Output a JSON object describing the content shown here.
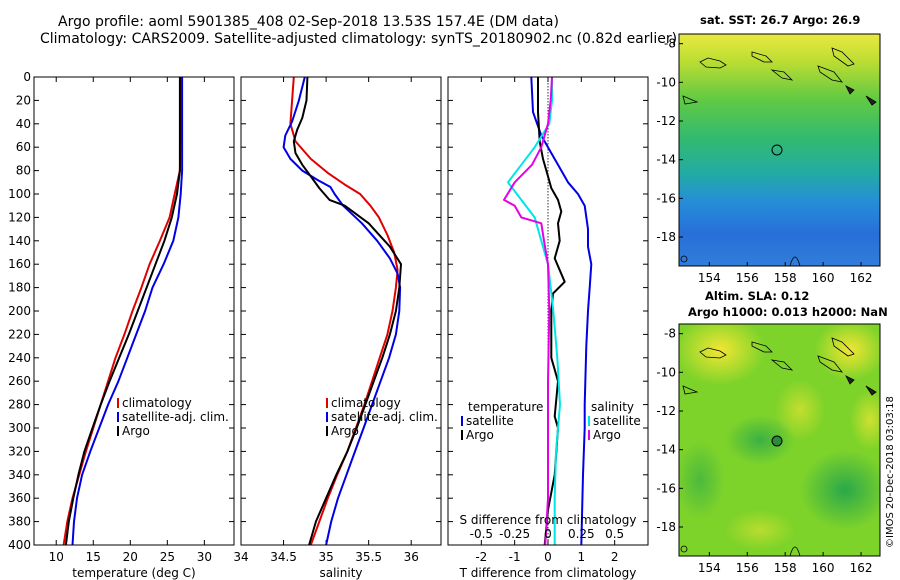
{
  "figure": {
    "title_line1": "Argo profile: aoml 5901385_408 02-Sep-2018 13.53S 157.4E (DM data)",
    "title_line2": "Climatology: CARS2009. Satellite-adjusted climatology: synTS_20180902.nc (0.82d earlier)",
    "credit": "©IMOS 20-Dec-2018 03:03:18",
    "colors": {
      "climatology": "#e00000",
      "satellite": "#0000e6",
      "argo": "#000000",
      "cyan": "#00e5e5",
      "magenta": "#e600e6"
    }
  },
  "chart_data": [
    {
      "id": "temperature",
      "type": "line",
      "xlabel": "temperature (deg C)",
      "ylabel": "",
      "xlim": [
        7,
        34
      ],
      "ylim": [
        400,
        0
      ],
      "xticks": [
        10,
        15,
        20,
        25,
        30
      ],
      "yticks": [
        0,
        20,
        40,
        60,
        80,
        100,
        120,
        140,
        160,
        180,
        200,
        220,
        240,
        260,
        280,
        300,
        320,
        340,
        360,
        380,
        400
      ],
      "legend": {
        "position": "middle-right",
        "entries": [
          "climatology",
          "satellite-adj. clim.",
          "Argo"
        ]
      },
      "series": [
        {
          "name": "climatology",
          "color": "#e00000",
          "points": [
            [
              26.8,
              0
            ],
            [
              26.8,
              40
            ],
            [
              26.7,
              80
            ],
            [
              26.0,
              100
            ],
            [
              25.3,
              120
            ],
            [
              24.0,
              140
            ],
            [
              22.6,
              160
            ],
            [
              21.5,
              180
            ],
            [
              20.3,
              200
            ],
            [
              19.2,
              220
            ],
            [
              18.0,
              240
            ],
            [
              17.0,
              260
            ],
            [
              16.0,
              280
            ],
            [
              15.0,
              300
            ],
            [
              14.0,
              320
            ],
            [
              13.1,
              340
            ],
            [
              12.2,
              360
            ],
            [
              11.5,
              380
            ],
            [
              11.0,
              400
            ]
          ]
        },
        {
          "name": "satellite-adj. clim.",
          "color": "#0000e6",
          "points": [
            [
              27.0,
              0
            ],
            [
              27.0,
              40
            ],
            [
              27.0,
              80
            ],
            [
              26.8,
              100
            ],
            [
              26.5,
              120
            ],
            [
              25.8,
              140
            ],
            [
              24.5,
              160
            ],
            [
              23.0,
              180
            ],
            [
              22.0,
              200
            ],
            [
              20.8,
              220
            ],
            [
              19.6,
              240
            ],
            [
              18.4,
              260
            ],
            [
              17.0,
              280
            ],
            [
              15.8,
              300
            ],
            [
              14.6,
              320
            ],
            [
              13.5,
              340
            ],
            [
              12.8,
              360
            ],
            [
              12.4,
              380
            ],
            [
              12.2,
              400
            ]
          ]
        },
        {
          "name": "Argo",
          "color": "#000000",
          "points": [
            [
              26.7,
              0
            ],
            [
              26.7,
              40
            ],
            [
              26.7,
              80
            ],
            [
              26.3,
              100
            ],
            [
              25.6,
              120
            ],
            [
              24.6,
              140
            ],
            [
              23.4,
              160
            ],
            [
              22.2,
              180
            ],
            [
              21.0,
              200
            ],
            [
              19.8,
              220
            ],
            [
              18.5,
              240
            ],
            [
              17.2,
              260
            ],
            [
              16.0,
              280
            ],
            [
              14.9,
              300
            ],
            [
              13.8,
              320
            ],
            [
              13.0,
              340
            ],
            [
              12.3,
              360
            ],
            [
              11.7,
              380
            ],
            [
              11.3,
              400
            ]
          ]
        }
      ]
    },
    {
      "id": "salinity",
      "type": "line",
      "xlabel": "salinity",
      "ylabel": "",
      "xlim": [
        34,
        36.35
      ],
      "ylim": [
        400,
        0
      ],
      "xticks": [
        34,
        34.5,
        35,
        35.5,
        36
      ],
      "yticks": [
        0,
        20,
        40,
        60,
        80,
        100,
        120,
        140,
        160,
        180,
        200,
        220,
        240,
        260,
        280,
        300,
        320,
        340,
        360,
        380,
        400
      ],
      "legend": {
        "position": "middle-right",
        "entries": [
          "climatology",
          "satellite-adj. clim.",
          "Argo"
        ]
      },
      "series": [
        {
          "name": "climatology",
          "color": "#e00000",
          "points": [
            [
              34.62,
              0
            ],
            [
              34.6,
              20
            ],
            [
              34.58,
              40
            ],
            [
              34.64,
              55
            ],
            [
              34.82,
              70
            ],
            [
              35.02,
              82
            ],
            [
              35.22,
              92
            ],
            [
              35.4,
              100
            ],
            [
              35.52,
              110
            ],
            [
              35.62,
              120
            ],
            [
              35.72,
              135
            ],
            [
              35.8,
              150
            ],
            [
              35.84,
              165
            ],
            [
              35.82,
              180
            ],
            [
              35.78,
              200
            ],
            [
              35.72,
              220
            ],
            [
              35.63,
              240
            ],
            [
              35.54,
              260
            ],
            [
              35.45,
              280
            ],
            [
              35.35,
              300
            ],
            [
              35.25,
              320
            ],
            [
              35.13,
              340
            ],
            [
              35.02,
              360
            ],
            [
              34.92,
              380
            ],
            [
              34.82,
              400
            ]
          ]
        },
        {
          "name": "satellite-adj. clim.",
          "color": "#0000e6",
          "points": [
            [
              34.75,
              0
            ],
            [
              34.68,
              20
            ],
            [
              34.6,
              38
            ],
            [
              34.52,
              50
            ],
            [
              34.5,
              60
            ],
            [
              34.58,
              70
            ],
            [
              34.72,
              80
            ],
            [
              34.9,
              88
            ],
            [
              35.05,
              94
            ],
            [
              35.1,
              100
            ],
            [
              35.2,
              110
            ],
            [
              35.42,
              125
            ],
            [
              35.6,
              140
            ],
            [
              35.75,
              155
            ],
            [
              35.84,
              168
            ],
            [
              35.87,
              180
            ],
            [
              35.86,
              200
            ],
            [
              35.82,
              220
            ],
            [
              35.74,
              240
            ],
            [
              35.64,
              260
            ],
            [
              35.54,
              280
            ],
            [
              35.44,
              300
            ],
            [
              35.34,
              320
            ],
            [
              35.24,
              340
            ],
            [
              35.14,
              360
            ],
            [
              35.06,
              380
            ],
            [
              35.0,
              400
            ]
          ]
        },
        {
          "name": "Argo",
          "color": "#000000",
          "points": [
            [
              34.78,
              0
            ],
            [
              34.77,
              20
            ],
            [
              34.72,
              35
            ],
            [
              34.66,
              45
            ],
            [
              34.62,
              55
            ],
            [
              34.64,
              65
            ],
            [
              34.72,
              75
            ],
            [
              34.82,
              85
            ],
            [
              34.92,
              95
            ],
            [
              35.04,
              105
            ],
            [
              35.22,
              110
            ],
            [
              35.5,
              125
            ],
            [
              35.75,
              145
            ],
            [
              35.88,
              160
            ],
            [
              35.86,
              180
            ],
            [
              35.82,
              200
            ],
            [
              35.75,
              220
            ],
            [
              35.66,
              240
            ],
            [
              35.56,
              260
            ],
            [
              35.46,
              280
            ],
            [
              35.36,
              300
            ],
            [
              35.25,
              320
            ],
            [
              35.12,
              340
            ],
            [
              35.0,
              360
            ],
            [
              34.88,
              380
            ],
            [
              34.8,
              400
            ]
          ]
        }
      ]
    },
    {
      "id": "differences",
      "type": "line",
      "xlabel": "T difference from climatology",
      "x2label": "S difference from climatology",
      "ylabel": "",
      "xlim": [
        -3,
        3
      ],
      "ylim": [
        400,
        0
      ],
      "xticks": [
        -2,
        -1,
        0,
        1,
        2
      ],
      "x2lim": [
        -0.75,
        0.75
      ],
      "x2ticks": [
        -0.5,
        -0.25,
        0,
        0.25,
        0.5
      ],
      "x2ticklabels": [
        "-0.5",
        "-0.25",
        "0",
        "0.25",
        "0.5"
      ],
      "yticks": [
        0,
        20,
        40,
        60,
        80,
        100,
        120,
        140,
        160,
        180,
        200,
        220,
        240,
        260,
        280,
        300,
        320,
        340,
        360,
        380,
        400
      ],
      "legend": {
        "position": "middle",
        "entries": [
          "temperature",
          "satellite",
          "Argo",
          "salinity",
          "satellite",
          "Argo"
        ]
      },
      "series": [
        {
          "name": "T satellite",
          "axis": "T",
          "color": "#0000e6",
          "points": [
            [
              -0.5,
              0
            ],
            [
              -0.45,
              30
            ],
            [
              -0.2,
              50
            ],
            [
              0.1,
              65
            ],
            [
              0.3,
              75
            ],
            [
              0.6,
              90
            ],
            [
              0.9,
              100
            ],
            [
              1.1,
              110
            ],
            [
              1.2,
              130
            ],
            [
              1.2,
              145
            ],
            [
              1.3,
              160
            ],
            [
              1.25,
              180
            ],
            [
              1.2,
              200
            ],
            [
              1.15,
              230
            ],
            [
              1.1,
              280
            ],
            [
              1.1,
              300
            ],
            [
              1.05,
              340
            ],
            [
              1.0,
              400
            ]
          ]
        },
        {
          "name": "T Argo",
          "axis": "T",
          "color": "#000000",
          "points": [
            [
              -0.3,
              0
            ],
            [
              -0.3,
              30
            ],
            [
              -0.25,
              55
            ],
            [
              -0.15,
              70
            ],
            [
              0.0,
              85
            ],
            [
              0.1,
              95
            ],
            [
              0.3,
              105
            ],
            [
              0.4,
              115
            ],
            [
              0.3,
              125
            ],
            [
              0.35,
              140
            ],
            [
              0.2,
              155
            ],
            [
              0.5,
              175
            ],
            [
              0.15,
              185
            ],
            [
              0.1,
              200
            ],
            [
              0.1,
              240
            ],
            [
              0.3,
              260
            ],
            [
              0.2,
              290
            ],
            [
              0.3,
              300
            ],
            [
              0.2,
              340
            ],
            [
              0.0,
              370
            ],
            [
              -0.1,
              400
            ]
          ]
        },
        {
          "name": "S satellite",
          "axis": "S",
          "color": "#00e5e5",
          "points": [
            [
              0.03,
              0
            ],
            [
              0.03,
              20
            ],
            [
              0.01,
              40
            ],
            [
              -0.1,
              60
            ],
            [
              -0.2,
              75
            ],
            [
              -0.3,
              90
            ],
            [
              -0.2,
              105
            ],
            [
              -0.1,
              120
            ],
            [
              -0.05,
              140
            ],
            [
              0.0,
              160
            ],
            [
              0.02,
              180
            ],
            [
              0.04,
              200
            ],
            [
              0.07,
              240
            ],
            [
              0.09,
              280
            ],
            [
              0.06,
              320
            ],
            [
              0.05,
              360
            ],
            [
              0.05,
              400
            ]
          ]
        },
        {
          "name": "S Argo",
          "axis": "S",
          "color": "#e600e6",
          "points": [
            [
              0.03,
              0
            ],
            [
              0.02,
              20
            ],
            [
              0.0,
              40
            ],
            [
              -0.05,
              60
            ],
            [
              -0.12,
              75
            ],
            [
              -0.25,
              90
            ],
            [
              -0.33,
              105
            ],
            [
              -0.25,
              110
            ],
            [
              -0.2,
              120
            ],
            [
              -0.05,
              125
            ],
            [
              -0.03,
              140
            ],
            [
              0.0,
              160
            ],
            [
              0.01,
              200
            ],
            [
              0.0,
              260
            ],
            [
              0.0,
              300
            ],
            [
              0.0,
              360
            ],
            [
              -0.02,
              400
            ]
          ]
        }
      ]
    },
    {
      "id": "sst_map",
      "type": "heatmap",
      "title": "sat. SST: 26.7 Argo: 26.9",
      "xlim": [
        152.4,
        163
      ],
      "ylim": [
        -19.5,
        -7.5
      ],
      "xticks": [
        154,
        156,
        158,
        160,
        162
      ],
      "yticks": [
        -8,
        -10,
        -12,
        -14,
        -16,
        -18
      ],
      "marker": {
        "lon": 157.4,
        "lat": -13.53
      }
    },
    {
      "id": "sla_map",
      "type": "heatmap",
      "title": "Altim. SLA: 0.12",
      "subtitle": "Argo h1000: 0.013 h2000: NaN",
      "xlim": [
        152.4,
        163
      ],
      "ylim": [
        -19.5,
        -7.5
      ],
      "xticks": [
        154,
        156,
        158,
        160,
        162
      ],
      "yticks": [
        -8,
        -10,
        -12,
        -14,
        -16,
        -18
      ],
      "marker": {
        "lon": 157.4,
        "lat": -13.53
      }
    }
  ]
}
